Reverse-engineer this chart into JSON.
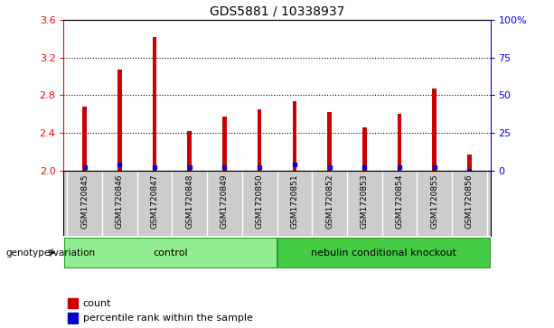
{
  "title": "GDS5881 / 10338937",
  "samples": [
    "GSM1720845",
    "GSM1720846",
    "GSM1720847",
    "GSM1720848",
    "GSM1720849",
    "GSM1720850",
    "GSM1720851",
    "GSM1720852",
    "GSM1720853",
    "GSM1720854",
    "GSM1720855",
    "GSM1720856"
  ],
  "counts": [
    2.68,
    3.07,
    3.42,
    2.42,
    2.57,
    2.65,
    2.74,
    2.62,
    2.46,
    2.6,
    2.87,
    2.17
  ],
  "percentile_values": [
    2,
    4,
    2,
    2,
    2,
    2,
    4,
    2,
    2,
    2,
    2,
    0
  ],
  "ylim_left": [
    2.0,
    3.6
  ],
  "ylim_right": [
    0,
    100
  ],
  "yticks_left": [
    2.0,
    2.4,
    2.8,
    3.2,
    3.6
  ],
  "yticks_right": [
    0,
    25,
    50,
    75,
    100
  ],
  "bar_color": "#cc0000",
  "percentile_color": "#0000cc",
  "bar_width": 0.12,
  "group_control_color": "#90ee90",
  "group_ko_color": "#44cc44",
  "group_control_label": "control",
  "group_ko_label": "nebulin conditional knockout",
  "legend_label_count": "count",
  "legend_label_percentile": "percentile rank within the sample",
  "genotype_label": "genotype/variation",
  "xlabel_area_color": "#cccccc",
  "base_value": 2.0,
  "grid_lines": [
    2.4,
    2.8,
    3.2
  ]
}
